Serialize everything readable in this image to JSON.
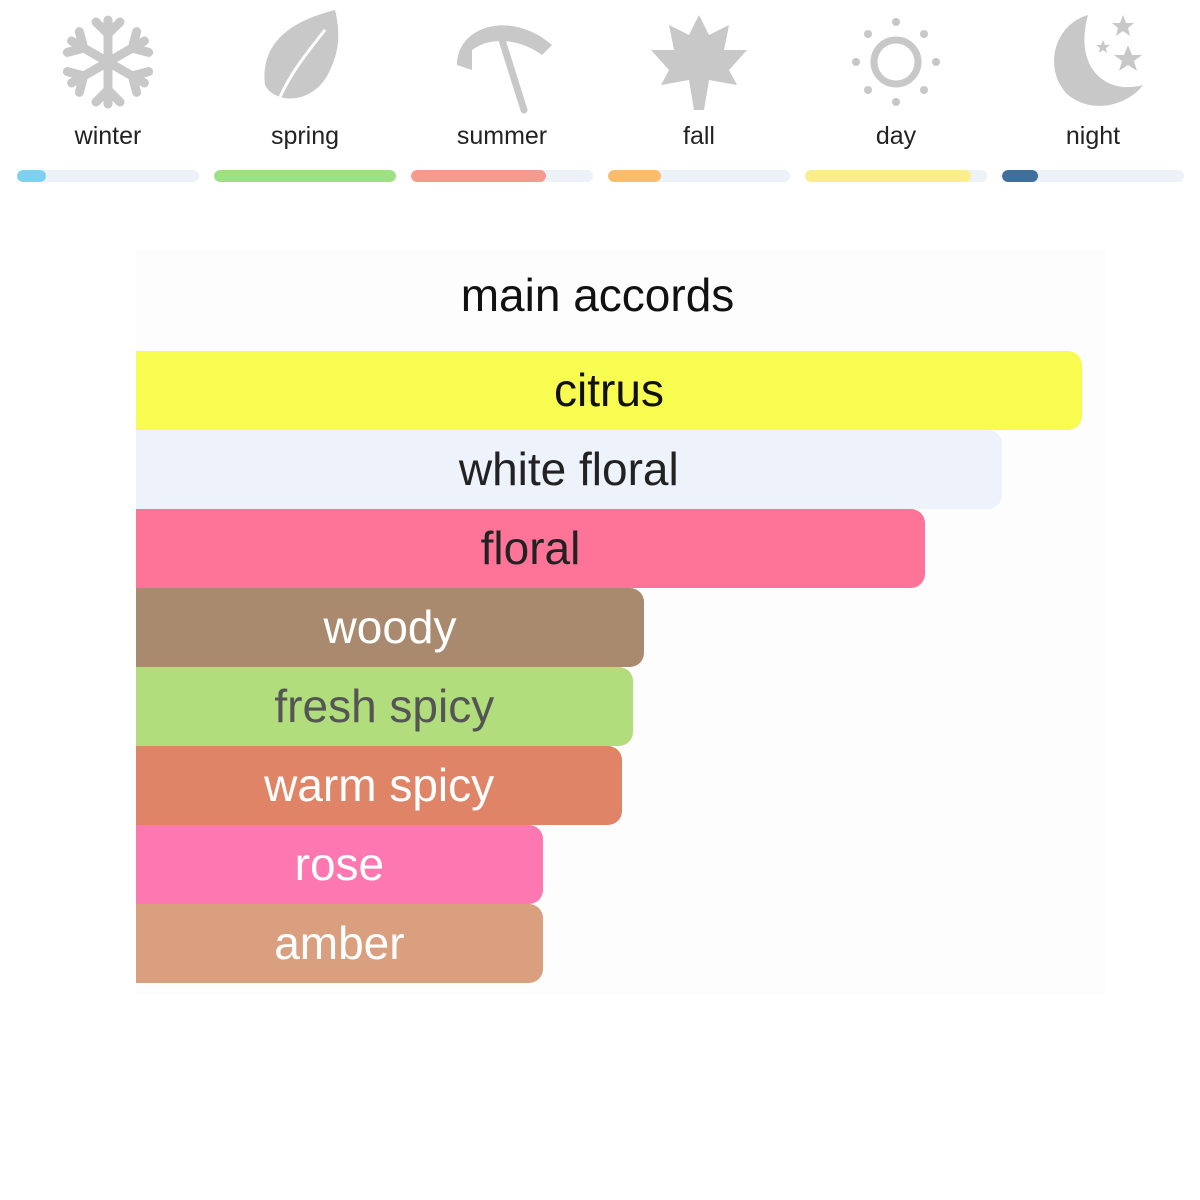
{
  "seasons": [
    {
      "label": "winter",
      "icon": "snowflake-icon",
      "percent": 16,
      "color": "#7dd3ef"
    },
    {
      "label": "spring",
      "icon": "leaf-icon",
      "percent": 100,
      "color": "#9ee183"
    },
    {
      "label": "summer",
      "icon": "umbrella-icon",
      "percent": 74,
      "color": "#f59a8d"
    },
    {
      "label": "fall",
      "icon": "maple-leaf-icon",
      "percent": 29,
      "color": "#fbbd6c"
    },
    {
      "label": "day",
      "icon": "sun-icon",
      "percent": 91,
      "color": "#fbee8a"
    },
    {
      "label": "night",
      "icon": "moon-stars-icon",
      "percent": 20,
      "color": "#3f709d"
    }
  ],
  "chart_data": {
    "type": "bar",
    "title": "main accords",
    "categories": [
      "citrus",
      "white floral",
      "floral",
      "woody",
      "fresh spicy",
      "warm spicy",
      "rose",
      "amber"
    ],
    "values": [
      100,
      91.5,
      83.4,
      53.7,
      52.5,
      51.4,
      43,
      43
    ],
    "colors": [
      "#f8fc50",
      "#edf2fb",
      "#fe7499",
      "#a98a6e",
      "#b1dd7c",
      "#df8466",
      "#fd77b1",
      "#d99f7e"
    ],
    "text_colors": [
      "#111111",
      "#222222",
      "#222222",
      "#ffffff",
      "#555555",
      "#ffffff",
      "#ffffff",
      "#ffffff"
    ]
  }
}
